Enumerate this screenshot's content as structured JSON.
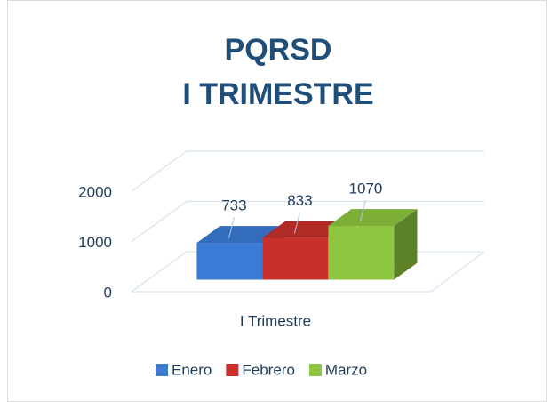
{
  "chart_data": {
    "type": "bar3d",
    "title": "PQRSD",
    "subtitle": "I TRIMESTRE",
    "categories": [
      "I Trimestre"
    ],
    "series": [
      {
        "name": "Enero",
        "color": "#3a7bd5",
        "values": [
          733
        ]
      },
      {
        "name": "Febrero",
        "color": "#c9302c",
        "values": [
          833
        ]
      },
      {
        "name": "Marzo",
        "color": "#8fc640",
        "values": [
          1070
        ]
      }
    ],
    "ylim": [
      0,
      2000
    ],
    "yticks": [
      0,
      1000,
      2000
    ],
    "grid": true,
    "legend": "bottom"
  }
}
